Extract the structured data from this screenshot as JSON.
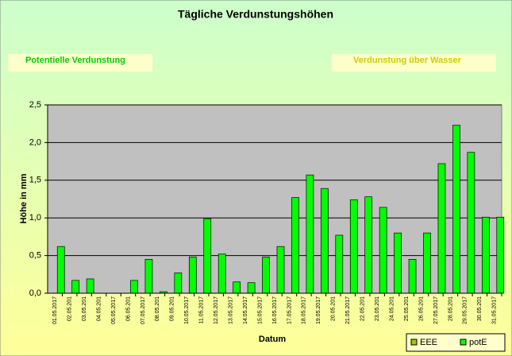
{
  "chart_data": {
    "type": "bar",
    "title": "Tägliche Verdunstungshöhen",
    "annotations": [
      "Potentielle Verdunstung",
      "Verdunstung über Wasser"
    ],
    "xlabel": "Datum",
    "ylabel": "Höhe in mm",
    "categories": [
      "01.05.2017",
      "02.05.201",
      "03.05.201",
      "04.05.201",
      "05.05.2017",
      "06.05.201",
      "07.05.2017",
      "08.05.201",
      "09.05.201",
      "10.05.2017",
      "11.05.2017",
      "12.05.2017",
      "13.05.2017",
      "14.05.2017",
      "15.05.2017",
      "16.05.2017",
      "17.05.2017",
      "18.05.2017",
      "19.05.2017",
      "20.05.201",
      "21.05.2017",
      "22.05.201",
      "23.05.201",
      "24.05.201",
      "25.05.201",
      "26.05.201",
      "27.05.2017",
      "28.05.201",
      "29.05.2017",
      "30.05.201",
      "31.05.2017"
    ],
    "series": [
      {
        "name": "EEE",
        "color": "#99cc00",
        "values": [
          null,
          null,
          null,
          null,
          null,
          null,
          null,
          null,
          null,
          null,
          null,
          null,
          null,
          null,
          null,
          null,
          null,
          null,
          null,
          null,
          null,
          null,
          null,
          null,
          null,
          null,
          null,
          null,
          null,
          null,
          null
        ]
      },
      {
        "name": "potE",
        "color": "#00ff00",
        "values": [
          0.62,
          0.17,
          0.19,
          0,
          0,
          0.17,
          0.45,
          0.02,
          0.27,
          0.48,
          0.99,
          0.52,
          0.15,
          0.14,
          0.48,
          0.62,
          1.27,
          1.57,
          1.39,
          0.77,
          1.24,
          1.28,
          1.14,
          0.8,
          0.45,
          0.8,
          1.72,
          2.23,
          1.87,
          1.01,
          1.01
        ]
      }
    ],
    "ylim": [
      0,
      2.5
    ],
    "yticks": [
      {
        "value": 0,
        "label": "0,0"
      },
      {
        "value": 0.5,
        "label": "0,5"
      },
      {
        "value": 1,
        "label": "1,0"
      },
      {
        "value": 1.5,
        "label": "1,5"
      },
      {
        "value": 2,
        "label": "2,0"
      },
      {
        "value": 2.5,
        "label": "2,5"
      }
    ],
    "grid": true,
    "legend": "bottom-right"
  }
}
